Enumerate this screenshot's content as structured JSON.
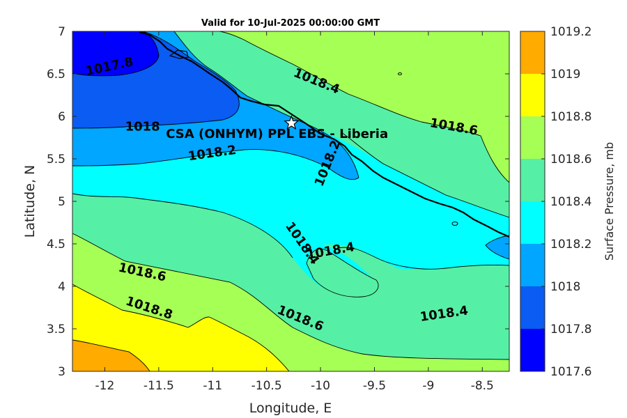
{
  "chart_data": {
    "type": "contour",
    "title": "Valid for 10-Jul-2025 00:00:00 GMT",
    "xlabel": "Longitude, E",
    "ylabel": "Latitude, N",
    "xlim": [
      -12.3,
      -8.25
    ],
    "ylim": [
      3,
      7
    ],
    "xticks": [
      -12,
      -11.5,
      -11,
      -10.5,
      -10,
      -9.5,
      -9,
      -8.5
    ],
    "yticks": [
      3,
      3.5,
      4,
      4.5,
      5,
      5.5,
      6,
      6.5,
      7
    ],
    "colorbar": {
      "label": "Surface Pressure, mb",
      "levels": [
        1017.6,
        1017.8,
        1018,
        1018.2,
        1018.4,
        1018.6,
        1018.8,
        1019,
        1019.2
      ],
      "colors": [
        "#0000ff",
        "#0a5cf2",
        "#00a6ff",
        "#00ffff",
        "#55f0a5",
        "#a6ff55",
        "#ffff00",
        "#ffab00",
        "#ff5500"
      ]
    },
    "contour_labels": [
      {
        "text": "1017.8",
        "x": -11.95,
        "y": 6.54
      },
      {
        "text": "1018.4",
        "x": -10.05,
        "y": 6.37
      },
      {
        "text": "1018",
        "x": -11.65,
        "y": 5.83
      },
      {
        "text": "1018.6",
        "x": -8.77,
        "y": 5.83
      },
      {
        "text": "1018.2",
        "x": -11.0,
        "y": 5.52
      },
      {
        "text": "1018.2",
        "x": -9.9,
        "y": 5.43
      },
      {
        "text": "1018.4",
        "x": -10.2,
        "y": 4.48
      },
      {
        "text": "1018.4",
        "x": -9.9,
        "y": 4.37
      },
      {
        "text": "1018.6",
        "x": -11.66,
        "y": 4.12
      },
      {
        "text": "1018.8",
        "x": -11.6,
        "y": 3.7
      },
      {
        "text": "1018.6",
        "x": -10.2,
        "y": 3.58
      },
      {
        "text": "1018.4",
        "x": -8.85,
        "y": 3.63
      }
    ],
    "site": {
      "name": "CSA (ONHYM) PPL EBS  - Liberia",
      "lon": -10.27,
      "lat": 5.92
    }
  }
}
